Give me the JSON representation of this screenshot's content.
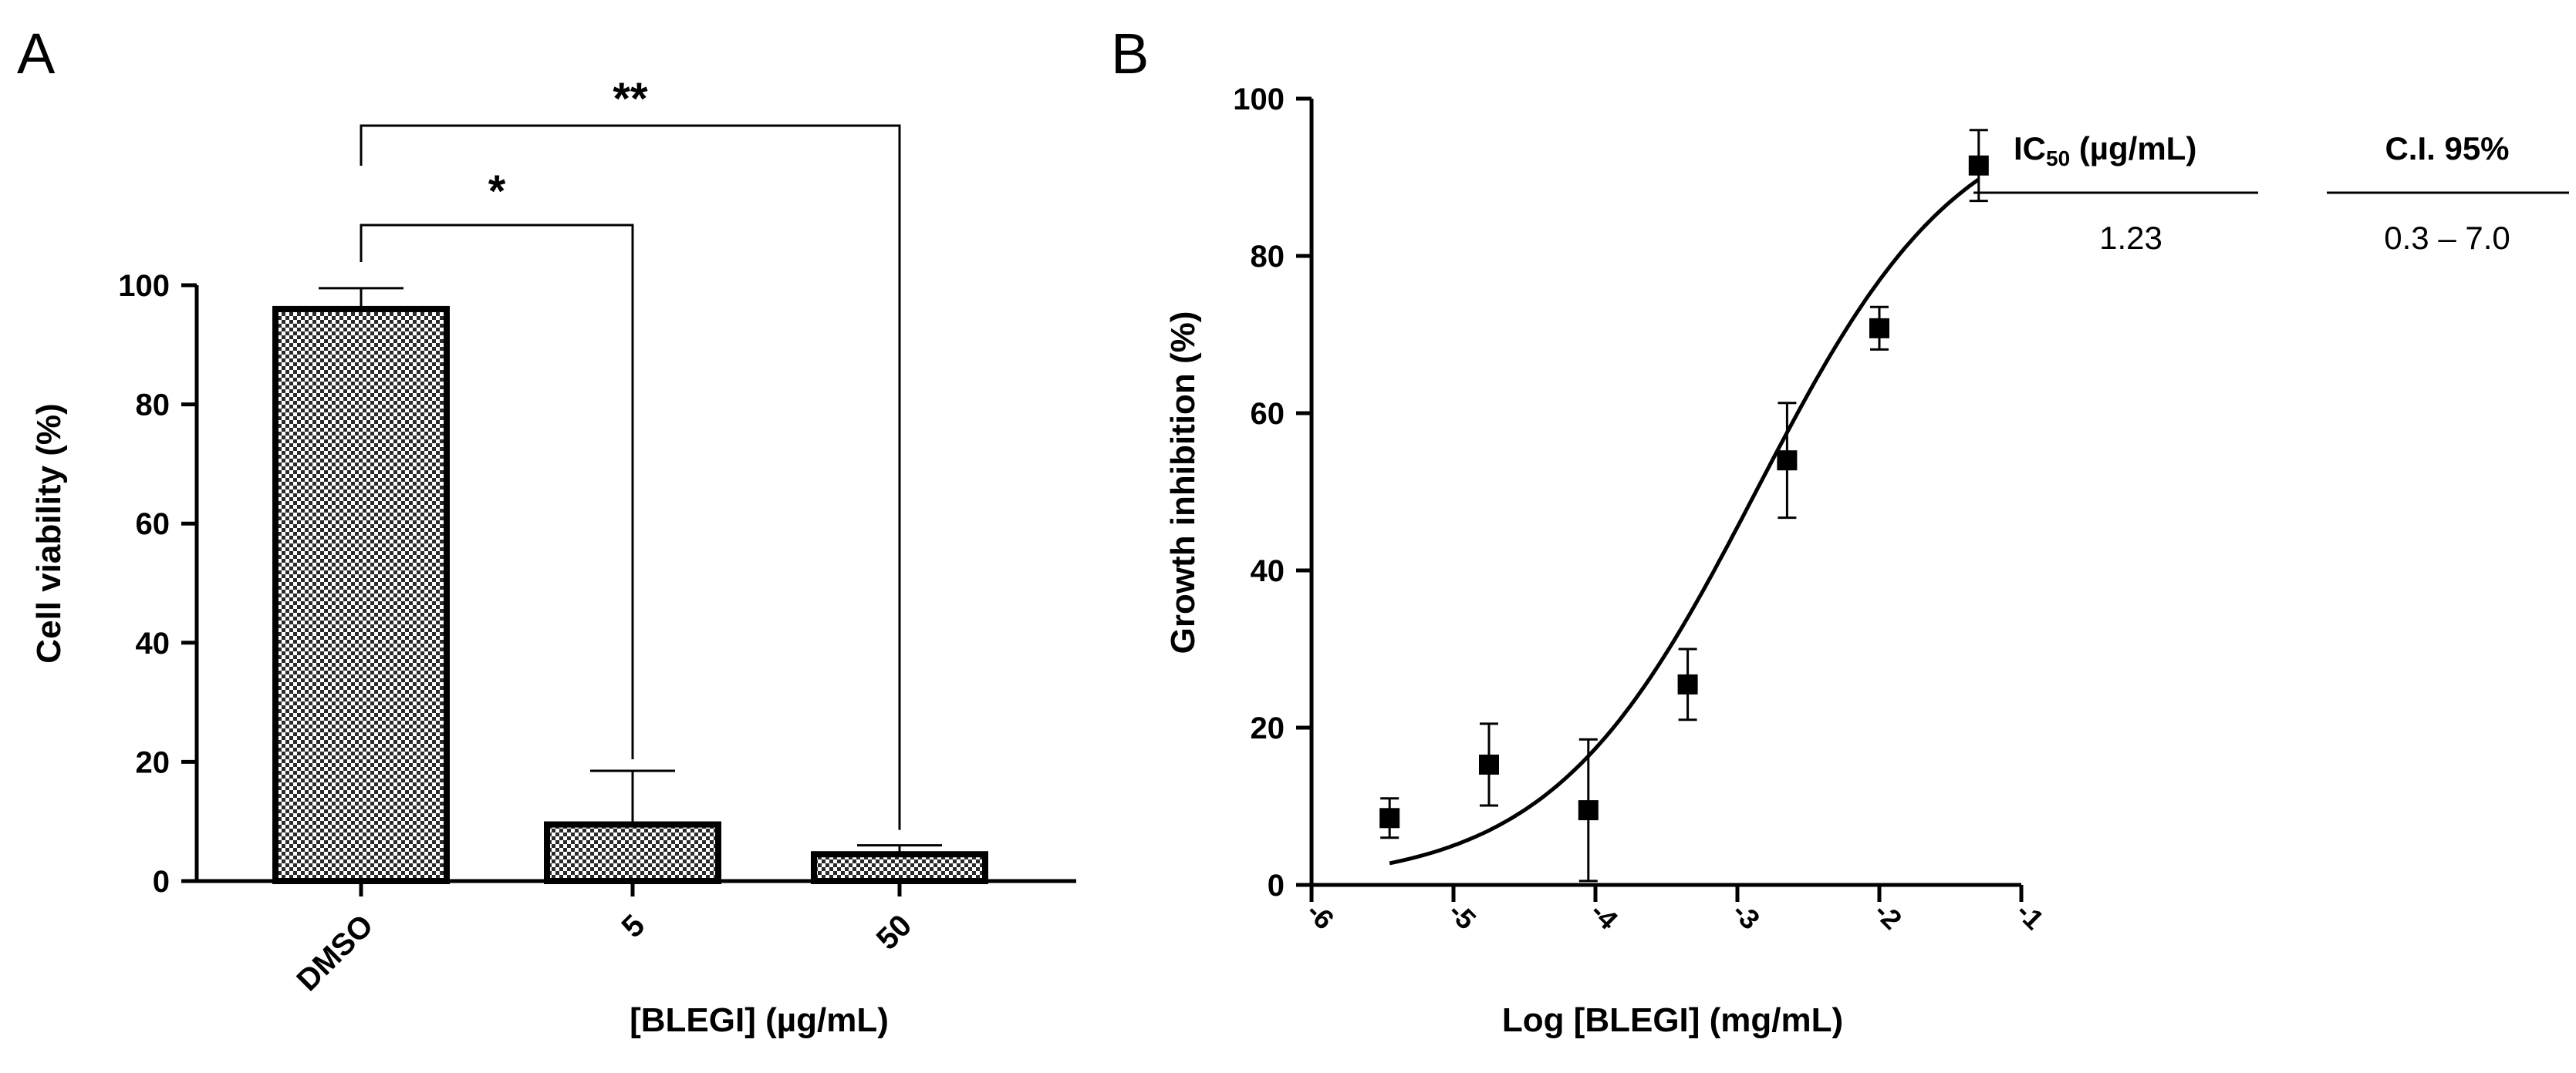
{
  "panel_a": {
    "letter": "A"
  },
  "panel_b": {
    "letter": "B"
  },
  "ic50_table": {
    "header_ic50_prefix": "IC",
    "header_ic50_sub": "50",
    "header_ic50_unit": " (µg/mL)",
    "header_ci": "C.I. 95%",
    "ic50_value": "1.23",
    "ci_value": "0.3 – 7.0"
  },
  "chart_data": [
    {
      "type": "bar",
      "panel": "A",
      "title": "",
      "xlabel": "[BLEGI] (µg/mL)",
      "ylabel": "Cell viability (%)",
      "categories": [
        "DMSO",
        "5",
        "50"
      ],
      "values": [
        96,
        9.5,
        4.5
      ],
      "errors": [
        3.5,
        9,
        1.5
      ],
      "ylim": [
        0,
        100
      ],
      "yticks": [
        0,
        20,
        40,
        60,
        80,
        100
      ],
      "fill": "checkerboard",
      "significance": [
        {
          "from": "DMSO",
          "to": "5",
          "label": "*"
        },
        {
          "from": "DMSO",
          "to": "50",
          "label": "**"
        }
      ]
    },
    {
      "type": "scatter",
      "panel": "B",
      "title": "",
      "xlabel": "Log [BLEGI] (mg/mL)",
      "ylabel": "Growth inhibition (%)",
      "xlim": [
        -6,
        -1
      ],
      "ylim": [
        0,
        100
      ],
      "xticks": [
        -6,
        -5,
        -4,
        -3,
        -2,
        -1
      ],
      "xtick_labels": [
        "-6",
        "-5",
        "-4",
        "-3",
        "-2",
        "-1"
      ],
      "yticks": [
        0,
        20,
        40,
        60,
        80,
        100
      ],
      "points": [
        {
          "x": -5.45,
          "y": 8.5,
          "err": 2.5
        },
        {
          "x": -4.75,
          "y": 15.3,
          "err": 5.2
        },
        {
          "x": -4.05,
          "y": 9.5,
          "err": 9.0
        },
        {
          "x": -3.35,
          "y": 25.5,
          "err": 4.5
        },
        {
          "x": -2.65,
          "y": 54,
          "err": 7.3
        },
        {
          "x": -2.0,
          "y": 70.8,
          "err": 2.7
        },
        {
          "x": -1.3,
          "y": 91.5,
          "err": 4.5
        }
      ],
      "fit": {
        "model": "sigmoidal dose-response",
        "bottom": 0,
        "top": 100,
        "logEC50": -2.87,
        "hill": 0.6,
        "x_from": -5.45,
        "x_to": -1.3
      }
    }
  ]
}
